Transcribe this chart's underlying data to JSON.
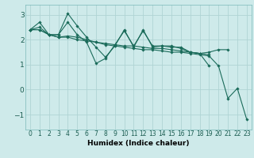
{
  "background_color": "#ceeaea",
  "grid_color": "#afd4d4",
  "line_color": "#1a6b5a",
  "marker_color": "#1a6b5a",
  "xlabel": "Humidex (Indice chaleur)",
  "ylim": [
    -1.6,
    3.4
  ],
  "xlim": [
    -0.5,
    23.5
  ],
  "yticks": [
    -1,
    0,
    1,
    2,
    3
  ],
  "xticks": [
    0,
    1,
    2,
    3,
    4,
    5,
    6,
    7,
    8,
    9,
    10,
    11,
    12,
    13,
    14,
    15,
    16,
    17,
    18,
    19,
    20,
    21,
    22,
    23
  ],
  "series": [
    [
      2.4,
      2.7,
      2.2,
      2.2,
      2.7,
      2.2,
      1.9,
      1.05,
      1.25,
      1.8,
      2.35,
      1.75,
      2.35,
      1.75,
      1.75,
      1.75,
      1.65,
      1.5,
      1.45,
      0.95,
      null,
      null,
      null,
      null
    ],
    [
      2.4,
      2.4,
      2.2,
      2.1,
      2.15,
      2.1,
      2.0,
      1.9,
      1.85,
      1.8,
      1.75,
      1.75,
      1.7,
      1.65,
      1.65,
      1.6,
      1.55,
      1.5,
      1.45,
      1.4,
      null,
      null,
      null,
      null
    ],
    [
      2.4,
      2.5,
      2.2,
      2.2,
      3.05,
      2.55,
      2.1,
      1.7,
      1.3,
      1.75,
      2.4,
      1.7,
      2.4,
      1.7,
      1.75,
      1.7,
      1.7,
      1.5,
      1.45,
      1.5,
      1.6,
      1.6,
      null,
      null
    ],
    [
      2.4,
      2.4,
      2.2,
      2.1,
      2.1,
      2.0,
      1.95,
      1.9,
      1.8,
      1.75,
      1.7,
      1.65,
      1.6,
      1.6,
      1.55,
      1.5,
      1.5,
      1.45,
      1.4,
      1.35,
      0.95,
      -0.35,
      0.05,
      -1.2
    ]
  ]
}
